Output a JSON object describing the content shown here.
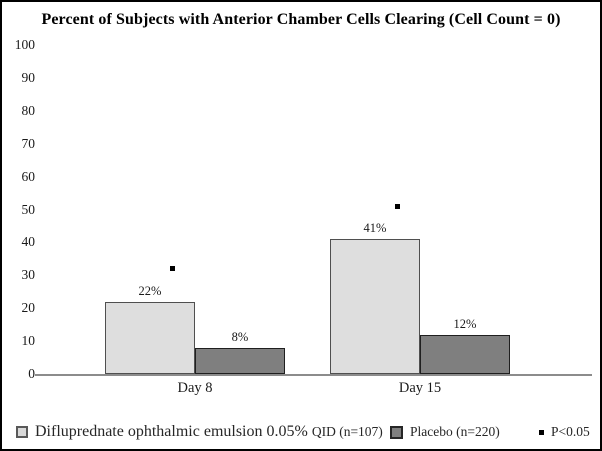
{
  "chart_data": {
    "type": "bar",
    "title": "Percent of Subjects with Anterior Chamber Cells Clearing (Cell Count = 0)",
    "categories": [
      "Day 8",
      "Day 15"
    ],
    "series": [
      {
        "name": "Difluprednate ophthalmic emulsion 0.05% QID (n=107)",
        "values": [
          22,
          41
        ],
        "labels": [
          "22%",
          "41%"
        ],
        "fill": "#dedede",
        "border": "#4f4f4f"
      },
      {
        "name": "Placebo (n=220)",
        "values": [
          8,
          12
        ],
        "labels": [
          "8%",
          "12%"
        ],
        "fill": "#7f7f7f",
        "border": "#1f1f1f"
      }
    ],
    "significance": {
      "label": "P<0.05",
      "marker_color": "#000000",
      "points": [
        {
          "category": "Day 8",
          "y": 32
        },
        {
          "category": "Day 15",
          "y": 51
        }
      ]
    },
    "xlabel": "",
    "ylabel": "",
    "ylim": [
      0,
      100
    ],
    "yticks": [
      0,
      10,
      20,
      30,
      40,
      50,
      60,
      70,
      80,
      90,
      100
    ],
    "grid": false,
    "legend_position": "bottom",
    "legend": {
      "entries": [
        {
          "label": "Difluprednate ophthalmic emulsion 0.05%",
          "suffix": "QID (n=107)",
          "swatch": "light-gray-square"
        },
        {
          "label": "Placebo (n=220)",
          "suffix": "",
          "swatch": "dark-gray-square"
        },
        {
          "label": "P<0.05",
          "suffix": "",
          "swatch": "black-marker-square"
        }
      ]
    }
  }
}
